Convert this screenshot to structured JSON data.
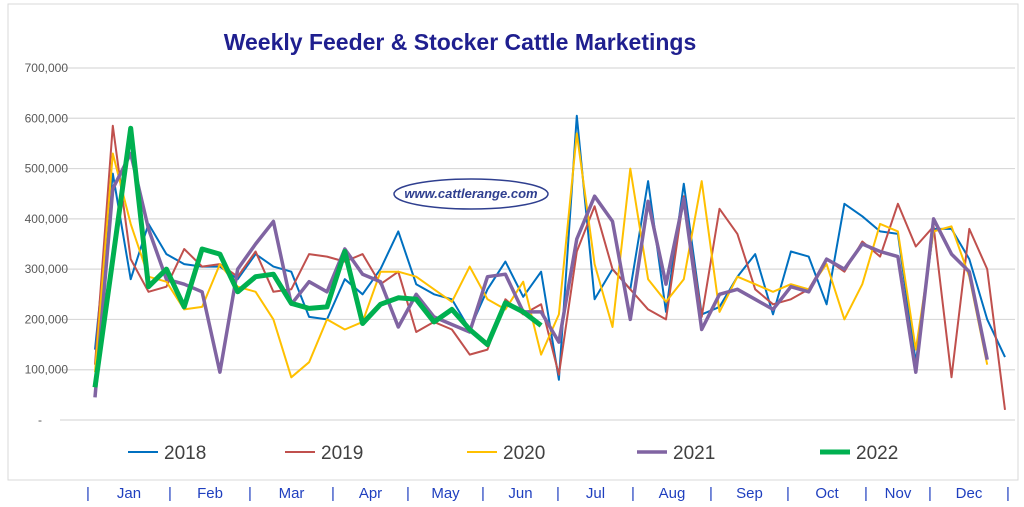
{
  "chart_data": {
    "type": "line",
    "title": "Weekly Feeder & Stocker Cattle Marketings",
    "watermark": "www.cattlerange.com",
    "xlabel": "",
    "ylabel": "",
    "ylim": [
      0,
      700000
    ],
    "yticks": [
      "-",
      "100,000",
      "200,000",
      "300,000",
      "400,000",
      "500,000",
      "600,000",
      "700,000"
    ],
    "x_unit": "week of year",
    "x_separator": "|",
    "months": [
      "Jan",
      "Feb",
      "Mar",
      "Apr",
      "May",
      "Jun",
      "Jul",
      "Aug",
      "Sep",
      "Oct",
      "Nov",
      "Dec"
    ],
    "grid": true,
    "legend": "bottom",
    "series": [
      {
        "name": "2018",
        "color": "#0070c0",
        "width": 2,
        "values": [
          140000,
          490000,
          280000,
          390000,
          330000,
          310000,
          305000,
          305000,
          280000,
          330000,
          305000,
          295000,
          205000,
          200000,
          280000,
          250000,
          300000,
          375000,
          270000,
          250000,
          240000,
          180000,
          260000,
          315000,
          245000,
          295000,
          80000,
          605000,
          240000,
          300000,
          260000,
          475000,
          215000,
          470000,
          210000,
          225000,
          285000,
          330000,
          210000,
          335000,
          325000,
          230000,
          430000,
          405000,
          375000,
          370000,
          115000,
          380000,
          380000,
          320000,
          200000,
          125000
        ]
      },
      {
        "name": "2019",
        "color": "#c0504d",
        "width": 2,
        "values": [
          110000,
          585000,
          320000,
          255000,
          265000,
          340000,
          305000,
          310000,
          285000,
          335000,
          255000,
          260000,
          330000,
          325000,
          315000,
          330000,
          270000,
          295000,
          175000,
          195000,
          180000,
          130000,
          140000,
          240000,
          210000,
          230000,
          90000,
          335000,
          425000,
          300000,
          260000,
          220000,
          200000,
          445000,
          205000,
          420000,
          370000,
          260000,
          230000,
          240000,
          260000,
          320000,
          295000,
          355000,
          325000,
          430000,
          345000,
          385000,
          85000,
          380000,
          300000,
          20000
        ]
      },
      {
        "name": "2020",
        "color": "#ffc000",
        "width": 2,
        "values": [
          95000,
          530000,
          390000,
          285000,
          275000,
          220000,
          225000,
          310000,
          265000,
          255000,
          200000,
          85000,
          115000,
          200000,
          180000,
          195000,
          295000,
          295000,
          285000,
          260000,
          235000,
          305000,
          240000,
          220000,
          275000,
          130000,
          210000,
          570000,
          310000,
          185000,
          500000,
          280000,
          235000,
          280000,
          475000,
          215000,
          285000,
          270000,
          255000,
          270000,
          260000,
          310000,
          200000,
          270000,
          390000,
          375000,
          140000,
          375000,
          385000,
          285000,
          110000
        ]
      },
      {
        "name": "2021",
        "color": "#8064a2",
        "width": 3.5,
        "values": [
          45000,
          460000,
          530000,
          380000,
          280000,
          270000,
          255000,
          95000,
          300000,
          350000,
          395000,
          230000,
          275000,
          255000,
          340000,
          290000,
          275000,
          185000,
          250000,
          205000,
          190000,
          175000,
          285000,
          290000,
          215000,
          215000,
          155000,
          360000,
          445000,
          395000,
          200000,
          435000,
          270000,
          440000,
          180000,
          250000,
          260000,
          240000,
          220000,
          265000,
          255000,
          320000,
          300000,
          350000,
          335000,
          325000,
          95000,
          400000,
          330000,
          295000,
          120000
        ]
      },
      {
        "name": "2022",
        "color": "#00b050",
        "width": 5,
        "values": [
          65000,
          320000,
          580000,
          265000,
          300000,
          225000,
          340000,
          330000,
          255000,
          285000,
          290000,
          232000,
          222000,
          225000,
          335000,
          192000,
          230000,
          243000,
          240000,
          195000,
          220000,
          180000,
          150000,
          233000,
          215000,
          188000
        ]
      }
    ]
  }
}
